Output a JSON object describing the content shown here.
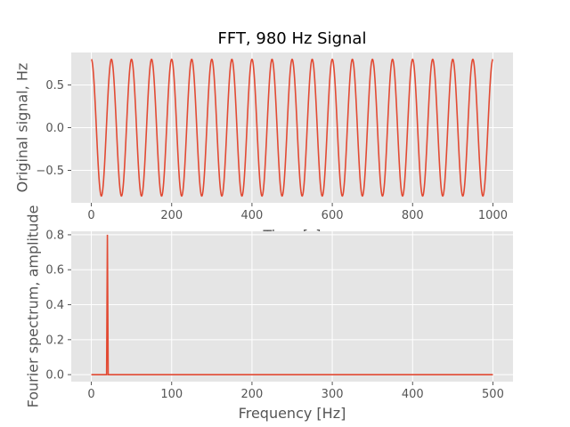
{
  "chart_data": [
    {
      "type": "line",
      "title": "FFT, 980 Hz Signal",
      "xlabel": "Time [s]",
      "ylabel": "Original signal, Hz",
      "xlim": [
        -50,
        1050
      ],
      "ylim": [
        -0.88,
        0.88
      ],
      "x_ticks": [
        0,
        200,
        400,
        600,
        800,
        1000
      ],
      "y_ticks": [
        -0.5,
        0.0,
        0.5
      ],
      "x_tick_labels": [
        "0",
        "200",
        "400",
        "600",
        "800",
        "1000"
      ],
      "y_tick_labels": [
        "−0.5",
        "0.0",
        "0.5"
      ],
      "grid": true,
      "series": [
        {
          "function": "0.8*cos(2*pi*x/50)",
          "x_range": [
            0,
            1000
          ],
          "amplitude": 0.8,
          "period": 50,
          "color": "#E24A33"
        }
      ]
    },
    {
      "type": "line",
      "xlabel": "Frequency [Hz]",
      "ylabel": "Fourier spectrum, amplitude",
      "xlim": [
        -25,
        525
      ],
      "ylim": [
        -0.04,
        0.82
      ],
      "x_ticks": [
        0,
        100,
        200,
        300,
        400,
        500
      ],
      "y_ticks": [
        0.0,
        0.2,
        0.4,
        0.6,
        0.8
      ],
      "x_tick_labels": [
        "0",
        "100",
        "200",
        "300",
        "400",
        "500"
      ],
      "y_tick_labels": [
        "0.0",
        "0.2",
        "0.4",
        "0.6",
        "0.8"
      ],
      "grid": true,
      "series": [
        {
          "x": [
            0,
            19,
            20,
            21,
            500
          ],
          "y": [
            0,
            0,
            0.8,
            0,
            0
          ],
          "color": "#E24A33"
        }
      ]
    }
  ]
}
